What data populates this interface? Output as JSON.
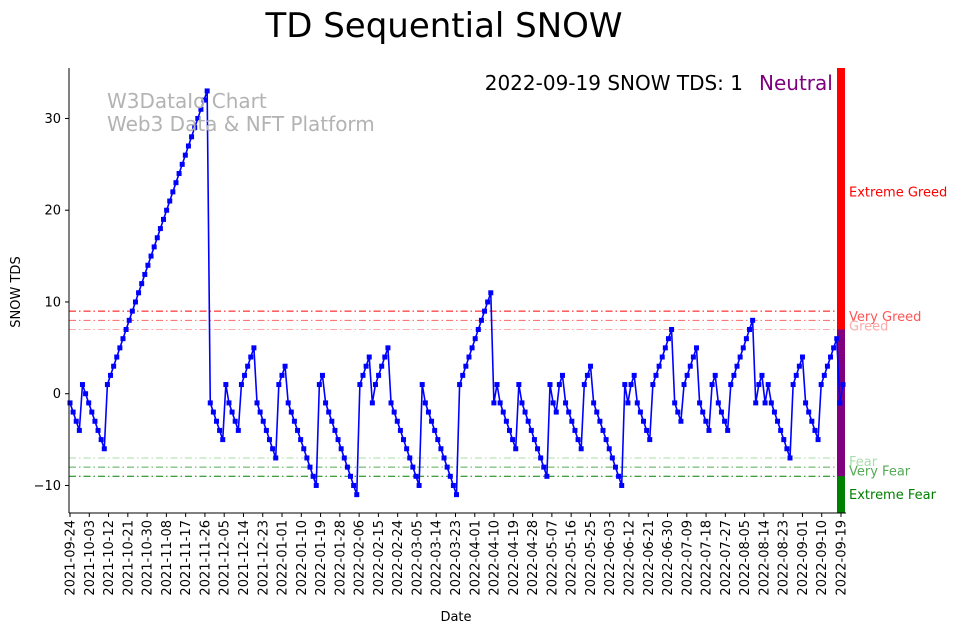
{
  "chart_data": {
    "type": "line",
    "title": "TD Sequential SNOW",
    "xlabel": "Date",
    "ylabel": "SNOW TDS",
    "ylim": [
      -13,
      35.5
    ],
    "y_ticks": [
      -10,
      0,
      10,
      20,
      30
    ],
    "x_start": "2021-09-24",
    "x_end": "2022-09-19",
    "x_tick_labels": [
      "2021-09-24",
      "2021-10-03",
      "2021-10-12",
      "2021-10-21",
      "2021-10-30",
      "2021-11-08",
      "2021-11-17",
      "2021-11-26",
      "2021-12-05",
      "2021-12-14",
      "2021-12-23",
      "2022-01-01",
      "2022-01-10",
      "2022-01-19",
      "2022-01-28",
      "2022-02-06",
      "2022-02-15",
      "2022-02-24",
      "2022-03-05",
      "2022-03-14",
      "2022-03-23",
      "2022-04-01",
      "2022-04-10",
      "2022-04-19",
      "2022-04-28",
      "2022-05-07",
      "2022-05-16",
      "2022-05-25",
      "2022-06-03",
      "2022-06-12",
      "2022-06-21",
      "2022-06-30",
      "2022-07-09",
      "2022-07-18",
      "2022-07-27",
      "2022-08-05",
      "2022-08-14",
      "2022-08-23",
      "2022-09-01",
      "2022-09-10",
      "2022-09-19"
    ],
    "series": [
      {
        "name": "SNOW TDS",
        "color": "#0000ff",
        "values": [
          -1,
          -2,
          -3,
          -4,
          1,
          0,
          -1,
          -2,
          -3,
          -4,
          -5,
          -6,
          1,
          2,
          3,
          4,
          5,
          6,
          7,
          8,
          9,
          10,
          11,
          12,
          13,
          14,
          15,
          16,
          17,
          18,
          19,
          20,
          21,
          22,
          23,
          24,
          25,
          26,
          27,
          28,
          29,
          30,
          31,
          32,
          33,
          -1,
          -2,
          -3,
          -4,
          -5,
          1,
          -1,
          -2,
          -3,
          -4,
          1,
          2,
          3,
          4,
          5,
          -1,
          -2,
          -3,
          -4,
          -5,
          -6,
          -7,
          1,
          2,
          3,
          -1,
          -2,
          -3,
          -4,
          -5,
          -6,
          -7,
          -8,
          -9,
          -10,
          1,
          2,
          -1,
          -2,
          -3,
          -4,
          -5,
          -6,
          -7,
          -8,
          -9,
          -10,
          -11,
          1,
          2,
          3,
          4,
          -1,
          1,
          2,
          3,
          4,
          5,
          -1,
          -2,
          -3,
          -4,
          -5,
          -6,
          -7,
          -8,
          -9,
          -10,
          1,
          -1,
          -2,
          -3,
          -4,
          -5,
          -6,
          -7,
          -8,
          -9,
          -10,
          -11,
          1,
          2,
          3,
          4,
          5,
          6,
          7,
          8,
          9,
          10,
          11,
          -1,
          1,
          -1,
          -2,
          -3,
          -4,
          -5,
          -6,
          1,
          -1,
          -2,
          -3,
          -4,
          -5,
          -6,
          -7,
          -8,
          -9,
          1,
          -1,
          -2,
          1,
          2,
          -1,
          -2,
          -3,
          -4,
          -5,
          -6,
          1,
          2,
          3,
          -1,
          -2,
          -3,
          -4,
          -5,
          -6,
          -7,
          -8,
          -9,
          -10,
          1,
          -1,
          1,
          2,
          -1,
          -2,
          -3,
          -4,
          -5,
          1,
          2,
          3,
          4,
          5,
          6,
          7,
          -1,
          -2,
          -3,
          1,
          2,
          3,
          4,
          5,
          -1,
          -2,
          -3,
          -4,
          1,
          2,
          -1,
          -2,
          -3,
          -4,
          1,
          2,
          3,
          4,
          5,
          6,
          7,
          8,
          -1,
          1,
          2,
          -1,
          1,
          -1,
          -2,
          -3,
          -4,
          -5,
          -6,
          -7,
          1,
          2,
          3,
          4,
          -1,
          -2,
          -3,
          -4,
          -5,
          1,
          2,
          3,
          4,
          5,
          6,
          -1,
          1
        ]
      }
    ],
    "reference_lines": [
      {
        "label": "Very Greed",
        "value": 9,
        "color": "#ff0000"
      },
      {
        "label": "Greed",
        "value": 8,
        "color": "#ff6666"
      },
      {
        "label": "Greed",
        "value": 7,
        "color": "#ffaaaa"
      },
      {
        "label": "Fear",
        "value": -7,
        "color": "#aaddaa"
      },
      {
        "label": "Very Fear",
        "value": -8,
        "color": "#55aa55"
      },
      {
        "label": "Extreme Fear",
        "value": -9,
        "color": "#008000"
      }
    ],
    "zone_bar": [
      {
        "label": "Extreme Greed",
        "from": 7,
        "to": 35.5,
        "color": "#ff0000"
      },
      {
        "label": "Neutral",
        "from": -9,
        "to": 7,
        "color": "#800080"
      },
      {
        "label": "Extreme Fear",
        "from": -13,
        "to": -9,
        "color": "#008000"
      }
    ],
    "zone_labels": [
      {
        "text": "Extreme Greed",
        "at": 22,
        "color": "#ff0000"
      },
      {
        "text": "Very Greed",
        "at": 8.4,
        "color": "#ff5555"
      },
      {
        "text": "Greed",
        "at": 7.4,
        "color": "#ffaaaa"
      },
      {
        "text": "Fear",
        "at": -7.4,
        "color": "#aaddaa"
      },
      {
        "text": "Very Fear",
        "at": -8.4,
        "color": "#55aa55"
      },
      {
        "text": "Extreme Fear",
        "at": -11,
        "color": "#008000"
      }
    ],
    "annotation": {
      "date": "2022-09-19",
      "text": "2022-09-19 SNOW TDS: 1",
      "state": "Neutral",
      "state_color": "#800080"
    },
    "watermark": {
      "line1": "W3DataIo Chart",
      "line2": "Web3 Data & NFT Platform"
    }
  }
}
